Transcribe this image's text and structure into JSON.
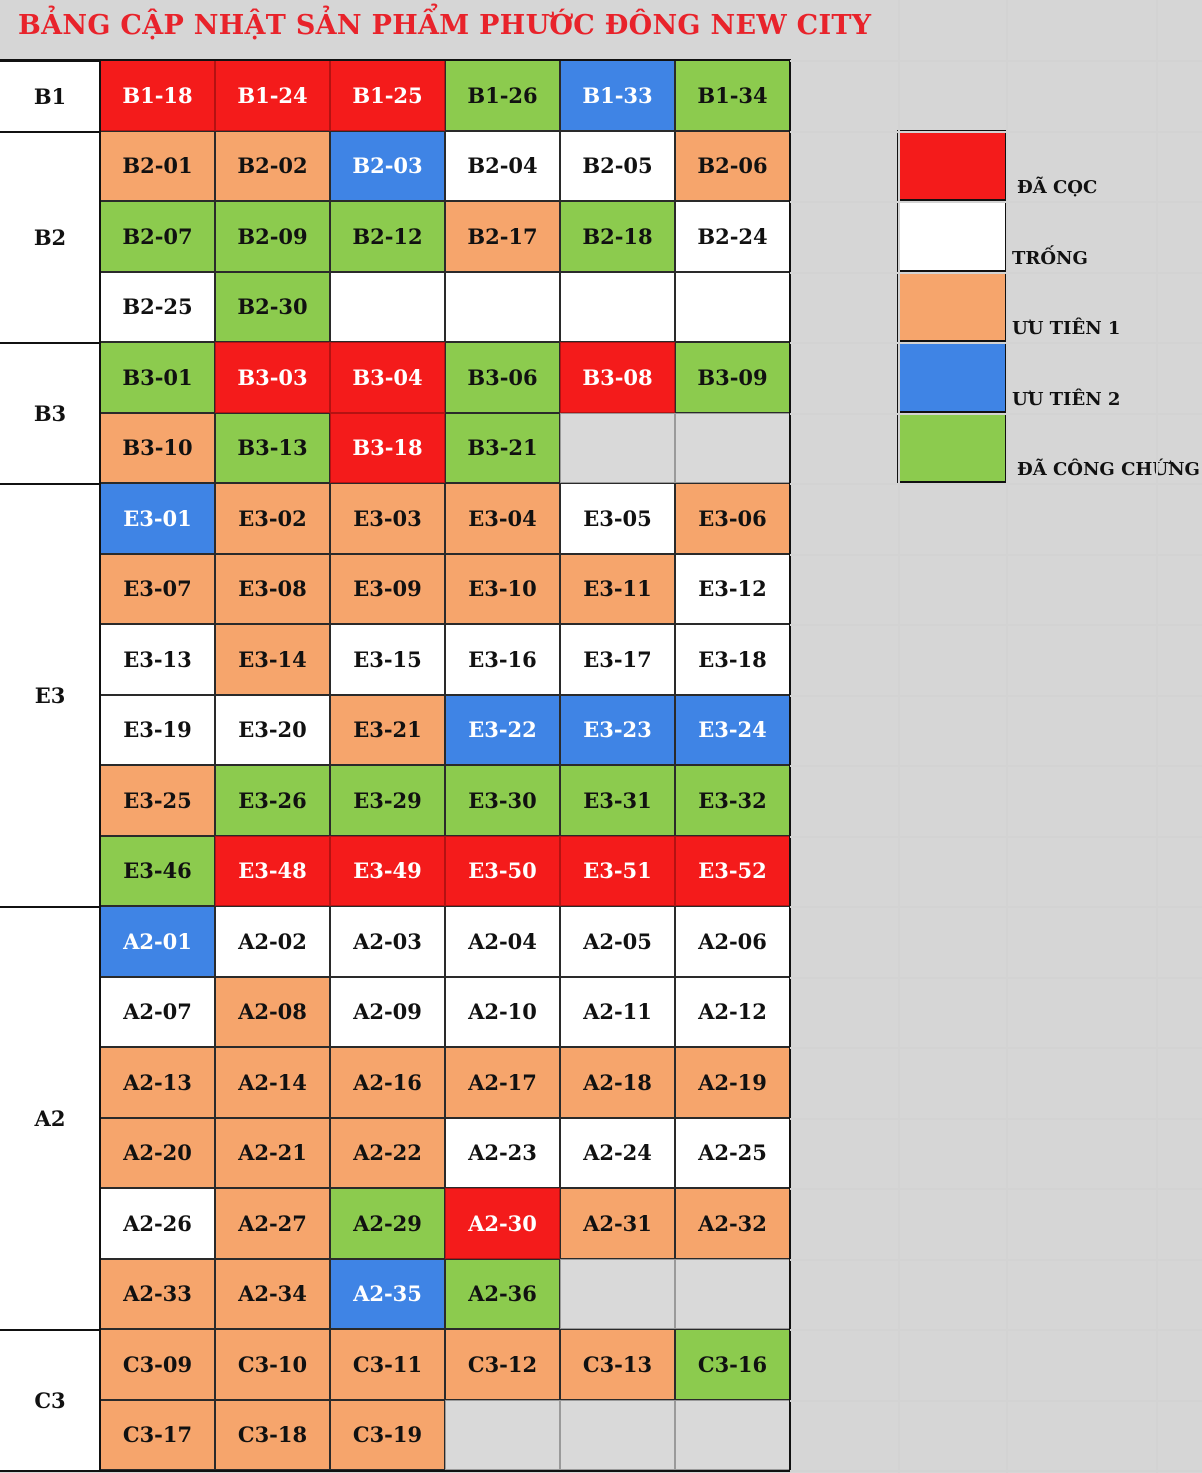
{
  "title": "BẢNG CẬP NHẬT SẢN PHẨM PHƯỚC ĐÔNG NEW CITY",
  "colors": {
    "red": "#f41b1b",
    "white": "#ffffff",
    "orange": "#f6a56c",
    "blue": "#3f84e5",
    "green": "#8ccb4e",
    "grey": "#d9d9d9"
  },
  "legend": [
    {
      "color": "red",
      "label": "ĐÃ CỌC"
    },
    {
      "color": "white",
      "label": "TRỐNG"
    },
    {
      "color": "orange",
      "label": "ƯU TIÊN 1"
    },
    {
      "color": "blue",
      "label": "ƯU TIÊN 2"
    },
    {
      "color": "green",
      "label": "ĐÃ CÔNG CHỨNG"
    }
  ],
  "groups": [
    {
      "name": "B1",
      "rows": [
        [
          [
            "B1-18",
            "red"
          ],
          [
            "B1-24",
            "red"
          ],
          [
            "B1-25",
            "red"
          ],
          [
            "B1-26",
            "green"
          ],
          [
            "B1-33",
            "blue"
          ],
          [
            "B1-34",
            "green"
          ]
        ]
      ]
    },
    {
      "name": "B2",
      "rows": [
        [
          [
            "B2-01",
            "orange"
          ],
          [
            "B2-02",
            "orange"
          ],
          [
            "B2-03",
            "blue"
          ],
          [
            "B2-04",
            "white"
          ],
          [
            "B2-05",
            "white"
          ],
          [
            "B2-06",
            "orange"
          ]
        ],
        [
          [
            "B2-07",
            "green"
          ],
          [
            "B2-09",
            "green"
          ],
          [
            "B2-12",
            "green"
          ],
          [
            "B2-17",
            "orange"
          ],
          [
            "B2-18",
            "green"
          ],
          [
            "B2-24",
            "white"
          ]
        ],
        [
          [
            "B2-25",
            "white"
          ],
          [
            "B2-30",
            "green"
          ],
          [
            "",
            "blank"
          ],
          [
            "",
            "blank"
          ],
          [
            "",
            "blank"
          ],
          [
            "",
            "blank"
          ]
        ]
      ]
    },
    {
      "name": "B3",
      "rows": [
        [
          [
            "B3-01",
            "green"
          ],
          [
            "B3-03",
            "red"
          ],
          [
            "B3-04",
            "red"
          ],
          [
            "B3-06",
            "green"
          ],
          [
            "B3-08",
            "red"
          ],
          [
            "B3-09",
            "green"
          ]
        ],
        [
          [
            "B3-10",
            "orange"
          ],
          [
            "B3-13",
            "green"
          ],
          [
            "B3-18",
            "red"
          ],
          [
            "B3-21",
            "green"
          ],
          [
            "",
            "grey"
          ],
          [
            "",
            "grey"
          ]
        ]
      ]
    },
    {
      "name": "E3",
      "rows": [
        [
          [
            "E3-01",
            "blue"
          ],
          [
            "E3-02",
            "orange"
          ],
          [
            "E3-03",
            "orange"
          ],
          [
            "E3-04",
            "orange"
          ],
          [
            "E3-05",
            "white"
          ],
          [
            "E3-06",
            "orange"
          ]
        ],
        [
          [
            "E3-07",
            "orange"
          ],
          [
            "E3-08",
            "orange"
          ],
          [
            "E3-09",
            "orange"
          ],
          [
            "E3-10",
            "orange"
          ],
          [
            "E3-11",
            "orange"
          ],
          [
            "E3-12",
            "white"
          ]
        ],
        [
          [
            "E3-13",
            "white"
          ],
          [
            "E3-14",
            "orange"
          ],
          [
            "E3-15",
            "white"
          ],
          [
            "E3-16",
            "white"
          ],
          [
            "E3-17",
            "white"
          ],
          [
            "E3-18",
            "white"
          ]
        ],
        [
          [
            "E3-19",
            "white"
          ],
          [
            "E3-20",
            "white"
          ],
          [
            "E3-21",
            "orange"
          ],
          [
            "E3-22",
            "blue"
          ],
          [
            "E3-23",
            "blue"
          ],
          [
            "E3-24",
            "blue"
          ]
        ],
        [
          [
            "E3-25",
            "orange"
          ],
          [
            "E3-26",
            "green"
          ],
          [
            "E3-29",
            "green"
          ],
          [
            "E3-30",
            "green"
          ],
          [
            "E3-31",
            "green"
          ],
          [
            "E3-32",
            "green"
          ]
        ],
        [
          [
            "E3-46",
            "green"
          ],
          [
            "E3-48",
            "red"
          ],
          [
            "E3-49",
            "red"
          ],
          [
            "E3-50",
            "red"
          ],
          [
            "E3-51",
            "red"
          ],
          [
            "E3-52",
            "red"
          ]
        ]
      ]
    },
    {
      "name": "A2",
      "rows": [
        [
          [
            "A2-01",
            "blue"
          ],
          [
            "A2-02",
            "white"
          ],
          [
            "A2-03",
            "white"
          ],
          [
            "A2-04",
            "white"
          ],
          [
            "A2-05",
            "white"
          ],
          [
            "A2-06",
            "white"
          ]
        ],
        [
          [
            "A2-07",
            "white"
          ],
          [
            "A2-08",
            "orange"
          ],
          [
            "A2-09",
            "white"
          ],
          [
            "A2-10",
            "white"
          ],
          [
            "A2-11",
            "white"
          ],
          [
            "A2-12",
            "white"
          ]
        ],
        [
          [
            "A2-13",
            "orange"
          ],
          [
            "A2-14",
            "orange"
          ],
          [
            "A2-16",
            "orange"
          ],
          [
            "A2-17",
            "orange"
          ],
          [
            "A2-18",
            "orange"
          ],
          [
            "A2-19",
            "orange"
          ]
        ],
        [
          [
            "A2-20",
            "orange"
          ],
          [
            "A2-21",
            "orange"
          ],
          [
            "A2-22",
            "orange"
          ],
          [
            "A2-23",
            "white"
          ],
          [
            "A2-24",
            "white"
          ],
          [
            "A2-25",
            "white"
          ]
        ],
        [
          [
            "A2-26",
            "white"
          ],
          [
            "A2-27",
            "orange"
          ],
          [
            "A2-29",
            "green"
          ],
          [
            "A2-30",
            "red"
          ],
          [
            "A2-31",
            "orange"
          ],
          [
            "A2-32",
            "orange"
          ]
        ],
        [
          [
            "A2-33",
            "orange"
          ],
          [
            "A2-34",
            "orange"
          ],
          [
            "A2-35",
            "blue"
          ],
          [
            "A2-36",
            "green"
          ],
          [
            "",
            "grey"
          ],
          [
            "",
            "grey"
          ]
        ]
      ]
    },
    {
      "name": "C3",
      "rows": [
        [
          [
            "C3-09",
            "orange"
          ],
          [
            "C3-10",
            "orange"
          ],
          [
            "C3-11",
            "orange"
          ],
          [
            "C3-12",
            "orange"
          ],
          [
            "C3-13",
            "orange"
          ],
          [
            "C3-16",
            "green"
          ]
        ],
        [
          [
            "C3-17",
            "orange"
          ],
          [
            "C3-18",
            "orange"
          ],
          [
            "C3-19",
            "orange"
          ],
          [
            "",
            "grey"
          ],
          [
            "",
            "grey"
          ],
          [
            "",
            "grey"
          ]
        ]
      ]
    }
  ]
}
